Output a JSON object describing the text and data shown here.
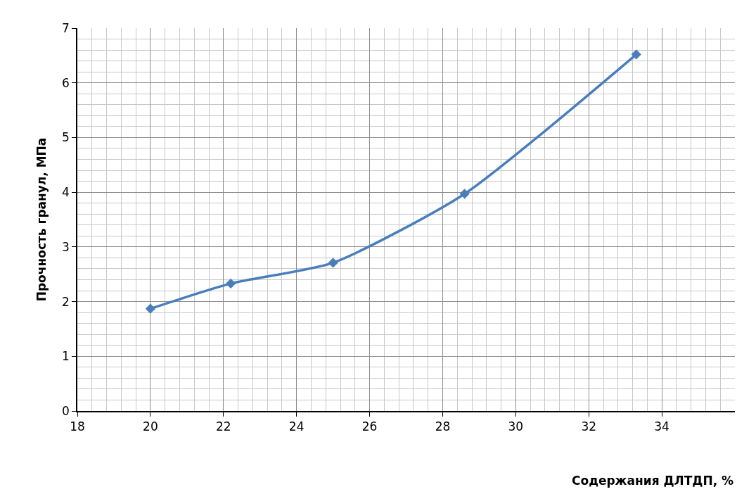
{
  "chart_data": {
    "type": "line",
    "xlabel": "Содержания ДЛТДП, %",
    "ylabel": "Прочность гранул, МПа",
    "x": [
      20,
      22.2,
      25,
      28.6,
      33.3
    ],
    "series": [
      {
        "color": "#4a7ebb",
        "values": [
          1.87,
          2.33,
          2.71,
          3.97,
          6.52
        ]
      }
    ],
    "xlim": [
      18,
      36
    ],
    "xticks": [
      18,
      20,
      22,
      24,
      26,
      28,
      30,
      32,
      34
    ],
    "ylim": [
      0,
      7
    ],
    "yticks": [
      0,
      1,
      2,
      3,
      4,
      5,
      6,
      7
    ],
    "grid": true,
    "marker": "diamond",
    "line_style": "solid"
  }
}
